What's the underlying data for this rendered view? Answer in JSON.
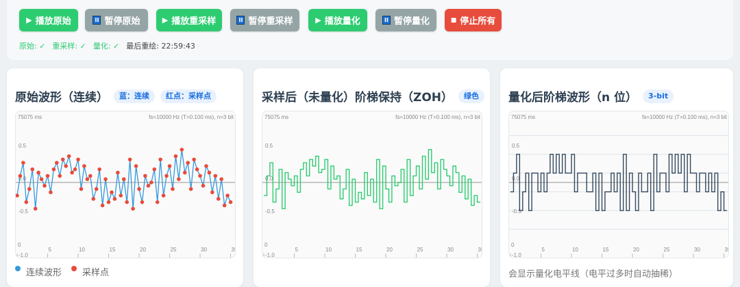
{
  "toolbar": {
    "buttons": [
      {
        "label": "播放原始",
        "icon": "play",
        "style": "g"
      },
      {
        "label": "暂停原始",
        "icon": "pause",
        "style": "gr"
      },
      {
        "label": "播放重采样",
        "icon": "play",
        "style": "g"
      },
      {
        "label": "暂停重采样",
        "icon": "pause",
        "style": "gr"
      },
      {
        "label": "播放量化",
        "icon": "play",
        "style": "g"
      },
      {
        "label": "暂停量化",
        "icon": "pause",
        "style": "gr"
      },
      {
        "label": "停止所有",
        "icon": "stop",
        "style": "r"
      }
    ],
    "pause_glyph": "II",
    "play_glyph": "▶",
    "stop_glyph": "■",
    "status": {
      "original": "原始: ✓",
      "resampled": "重采样: ✓",
      "quantized": "量化: ✓",
      "last_redraw": "最后重绘: 22:59:43"
    }
  },
  "colors": {
    "continuous": "#3498db",
    "samples": "#e74c3c",
    "zoh": "#2ecc71",
    "quantized": "#34495e",
    "play": "#2ecc71",
    "pause": "#95a5a6",
    "stop": "#e74c3c"
  },
  "panels": [
    {
      "title": "原始波形（连续）",
      "tags": [
        "蓝：连续",
        "红点：采样点"
      ],
      "legend": [
        "连续波形",
        "采样点"
      ]
    },
    {
      "title": "采样后（未量化）阶梯保持（ZOH）",
      "tags": [
        "绿色"
      ]
    },
    {
      "title": "量化后阶梯波形（n 位）",
      "tags": [
        "3-bit"
      ],
      "note": "会显示量化电平线（电平过多时自动抽稀）"
    }
  ],
  "chart_data": {
    "type": "line",
    "time_label": "75075 ms",
    "info": "fs=10000 Hz  (T=0.100 ms),  n=3 bit",
    "xlim": [
      0,
      35.5
    ],
    "ylim": [
      -1,
      1
    ],
    "x_ticks": [
      "0",
      "5",
      "10",
      "15",
      "20",
      "25",
      "30",
      "35"
    ],
    "y_ticks": [
      "0.5",
      "0.0",
      "-0.5",
      "-1.0"
    ],
    "x_step": 0.5,
    "values": [
      -0.2,
      0.1,
      0.3,
      -0.3,
      -0.1,
      0.2,
      -0.4,
      0.15,
      0.05,
      -0.05,
      0.1,
      -0.15,
      0.2,
      0.3,
      0.1,
      0.35,
      0.25,
      0.4,
      0.15,
      0.2,
      0.35,
      -0.1,
      0.25,
      0.05,
      0.1,
      -0.25,
      -0.1,
      0.2,
      -0.35,
      0.05,
      -0.3,
      -0.15,
      -0.25,
      0.15,
      -0.2,
      0.05,
      -0.3,
      0.35,
      -0.4,
      0.25,
      -0.1,
      -0.3,
      0.1,
      -0.05,
      0.0,
      0.2,
      -0.3,
      0.35,
      -0.2,
      0.1,
      0.25,
      -0.1,
      0.4,
      0.05,
      0.5,
      0.15,
      0.3,
      -0.1,
      0.35,
      0.2,
      0.1,
      -0.05,
      0.25,
      0.15,
      -0.15,
      0.1,
      -0.25,
      0.05,
      -0.35,
      -0.2,
      -0.3
    ],
    "quant_levels": [
      -1,
      -0.714,
      -0.429,
      -0.143,
      0.143,
      0.429,
      0.714,
      1
    ]
  }
}
